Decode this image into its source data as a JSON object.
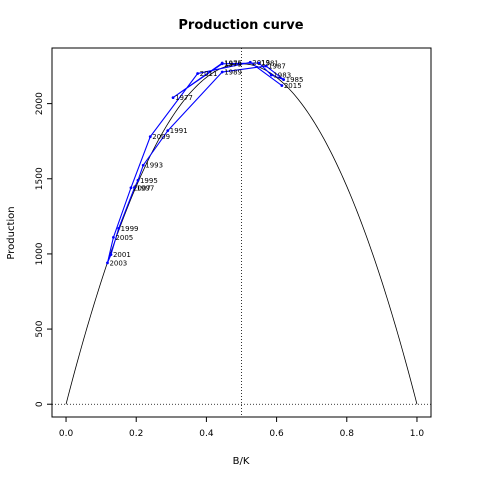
{
  "chart_data": {
    "type": "line",
    "title": "Production curve",
    "xlabel": "B/K",
    "ylabel": "Production",
    "xlim": [
      -0.04,
      1.04
    ],
    "ylim": [
      -85,
      2370
    ],
    "xticks": [
      "0.0",
      "0.2",
      "0.4",
      "0.6",
      "0.8",
      "1.0"
    ],
    "yticks": [
      "0",
      "500",
      "1000",
      "1500",
      "2000"
    ],
    "curve": {
      "peak_x": 0.5,
      "peak_y": 2265
    },
    "vline_x": 0.5,
    "hline_y": 0,
    "series": [
      {
        "color": "#0000ff",
        "points": [
          {
            "year": "1975",
            "x": 0.445,
            "y": 2270
          },
          {
            "year": "1977",
            "x": 0.305,
            "y": 2040
          },
          {
            "year": "1979",
            "x": 0.445,
            "y": 2265
          },
          {
            "year": "1981",
            "x": 0.55,
            "y": 2270
          },
          {
            "year": "1983",
            "x": 0.585,
            "y": 2190
          },
          {
            "year": "1985",
            "x": 0.62,
            "y": 2160
          },
          {
            "year": "1987",
            "x": 0.57,
            "y": 2250
          },
          {
            "year": "1989",
            "x": 0.445,
            "y": 2210
          },
          {
            "year": "1991",
            "x": 0.29,
            "y": 1820
          },
          {
            "year": "1993",
            "x": 0.22,
            "y": 1590
          },
          {
            "year": "1995",
            "x": 0.205,
            "y": 1490
          },
          {
            "year": "1997",
            "x": 0.195,
            "y": 1440
          },
          {
            "year": "1999",
            "x": 0.15,
            "y": 1170
          },
          {
            "year": "2001",
            "x": 0.128,
            "y": 995
          },
          {
            "year": "2003",
            "x": 0.118,
            "y": 940
          },
          {
            "year": "2005",
            "x": 0.135,
            "y": 1110
          },
          {
            "year": "2007",
            "x": 0.185,
            "y": 1440
          },
          {
            "year": "2009",
            "x": 0.24,
            "y": 1780
          },
          {
            "year": "2011",
            "x": 0.375,
            "y": 2200
          },
          {
            "year": "2013",
            "x": 0.525,
            "y": 2275
          },
          {
            "year": "2015",
            "x": 0.615,
            "y": 2120
          }
        ]
      }
    ]
  }
}
